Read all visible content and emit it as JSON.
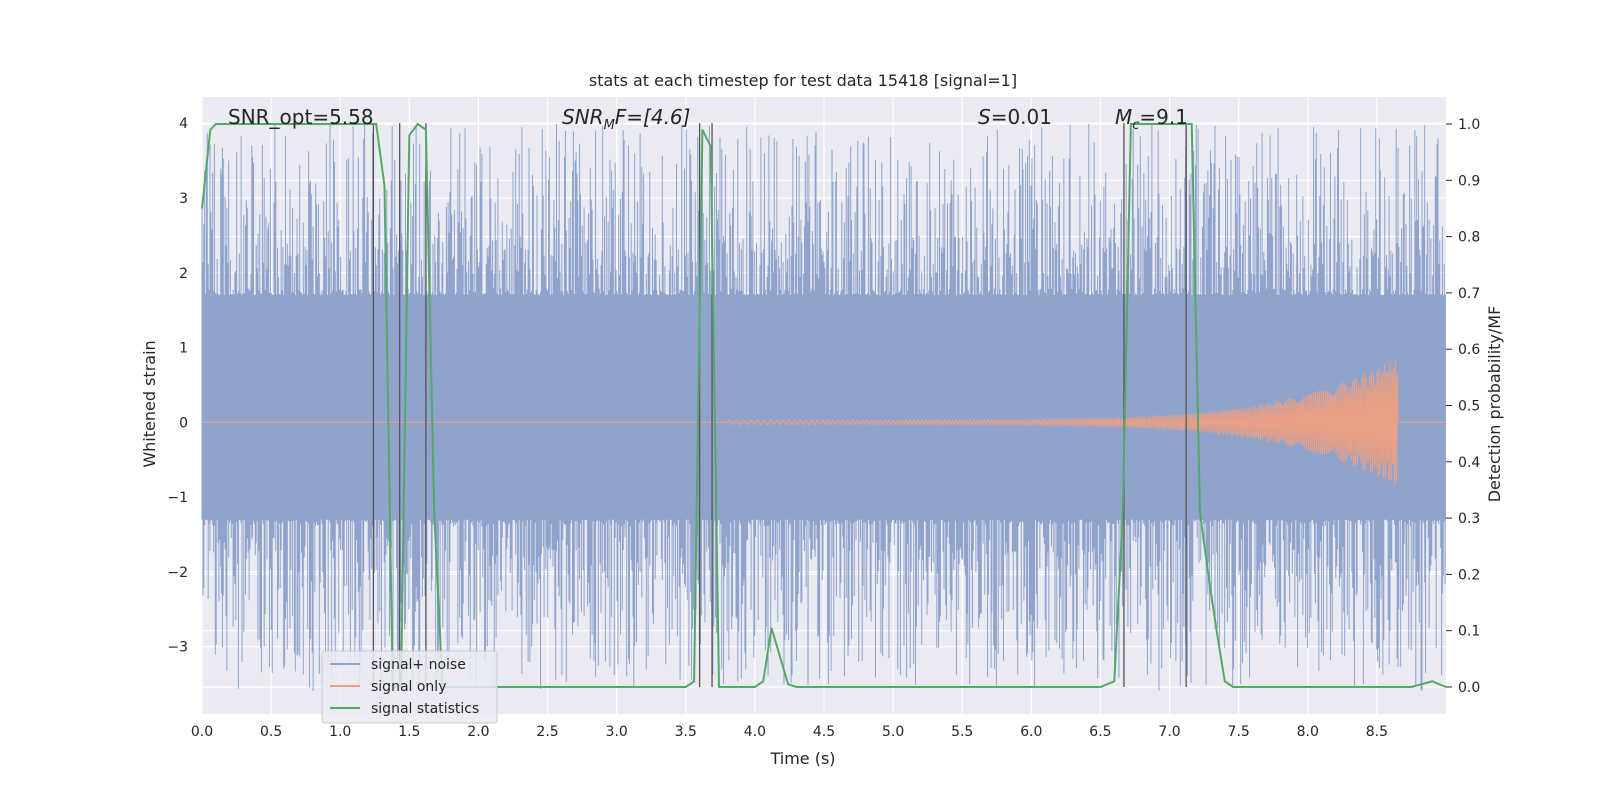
{
  "chart_data": {
    "type": "line",
    "title": "stats at each timestep for test data 15418 [signal=1]",
    "xlabel": "Time (s)",
    "ylabel": "Whitened strain",
    "y2label": "Detection probability/MF",
    "xlim": [
      0.0,
      9.0
    ],
    "ylim": [
      -3.9,
      4.35
    ],
    "y2lim": [
      -0.048,
      1.048
    ],
    "x_ticks": [
      "0.0",
      "0.5",
      "1.0",
      "1.5",
      "2.0",
      "2.5",
      "3.0",
      "3.5",
      "4.0",
      "4.5",
      "5.0",
      "5.5",
      "6.0",
      "6.5",
      "7.0",
      "7.5",
      "8.0",
      "8.5"
    ],
    "y_ticks": [
      "4",
      "3",
      "2",
      "1",
      "0",
      "−1",
      "−2",
      "−3"
    ],
    "y2_ticks": [
      "1.0",
      "0.9",
      "0.8",
      "0.7",
      "0.6",
      "0.5",
      "0.4",
      "0.3",
      "0.2",
      "0.1",
      "0.0"
    ],
    "grid": true,
    "legend_position": "lower-left",
    "annotations": {
      "snr_opt": "SNR_opt=5.58",
      "snr_mf_main": "SNR",
      "snr_mf_sub": "M",
      "snr_mf_rest": "F=[4.6]",
      "s_var": "S",
      "s_rest": "=0.01",
      "mc_main": "M",
      "mc_sub": "c",
      "mc_rest": "=9.1"
    },
    "series": [
      {
        "name": "signal+ noise",
        "color": "#8fa3cc",
        "noise_envelope": {
          "core": [
            -1.3,
            1.7
          ],
          "peak": [
            -3.6,
            4.0
          ]
        }
      },
      {
        "name": "signal only",
        "color": "#e8a086",
        "chirp": {
          "start": 3.8,
          "end": 8.65,
          "peak_amplitude": 0.87
        }
      },
      {
        "name": "signal statistics",
        "color": "#55a868",
        "x": [
          0.0,
          0.06,
          0.1,
          0.2,
          0.5,
          1.0,
          1.2,
          1.26,
          1.32,
          1.38,
          1.44,
          1.5,
          1.56,
          1.62,
          1.68,
          1.74,
          1.8,
          2.0,
          3.0,
          3.5,
          3.56,
          3.62,
          3.68,
          3.74,
          3.8,
          4.0,
          4.06,
          4.12,
          4.24,
          4.3,
          4.5,
          5.0,
          6.0,
          6.5,
          6.6,
          6.66,
          6.72,
          6.78,
          6.9,
          7.0,
          7.1,
          7.16,
          7.22,
          7.28,
          7.34,
          7.4,
          7.46,
          8.0,
          8.5,
          8.75,
          8.9,
          9.0
        ],
        "y": [
          0.85,
          0.99,
          1.0,
          1.0,
          1.0,
          1.0,
          1.0,
          1.0,
          0.89,
          0.0,
          0.0,
          0.98,
          1.0,
          0.99,
          0.31,
          0.0,
          0.0,
          0.0,
          0.0,
          0.0,
          0.01,
          0.99,
          0.96,
          0.0,
          0.0,
          0.0,
          0.01,
          0.105,
          0.005,
          0.0,
          0.0,
          0.0,
          0.0,
          0.0,
          0.01,
          0.3,
          1.0,
          1.0,
          1.0,
          1.0,
          1.0,
          1.0,
          0.31,
          0.2,
          0.1,
          0.01,
          0.0,
          0.0,
          0.0,
          0.0,
          0.01,
          0.0
        ]
      }
    ],
    "vertical_lines": [
      1.24,
      1.43,
      1.62,
      3.6,
      3.69,
      6.67,
      7.12
    ]
  }
}
